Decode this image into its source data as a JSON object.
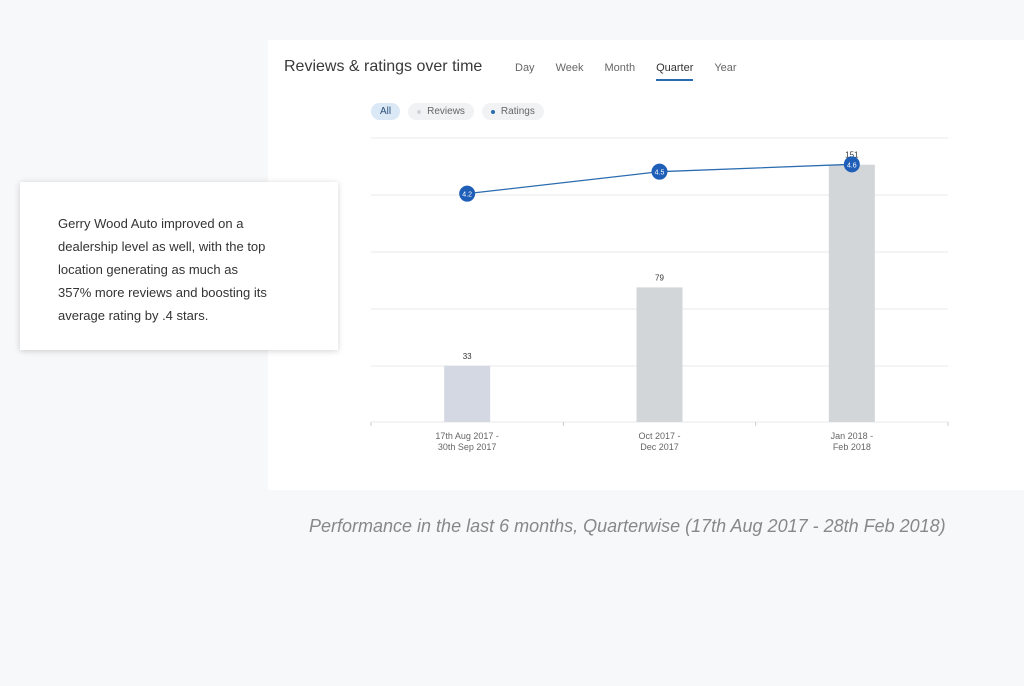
{
  "header": {
    "title": "Reviews & ratings over time",
    "period_tabs": [
      {
        "label": "Day",
        "active": false
      },
      {
        "label": "Week",
        "active": false
      },
      {
        "label": "Month",
        "active": false
      },
      {
        "label": "Quarter",
        "active": true
      },
      {
        "label": "Year",
        "active": false
      }
    ]
  },
  "filters": [
    {
      "label": "All",
      "active": true,
      "dot_color": ""
    },
    {
      "label": "Reviews",
      "active": false,
      "dot_color": "#d0d4d8"
    },
    {
      "label": "Ratings",
      "active": false,
      "dot_color": "#2b6cb0"
    }
  ],
  "colors": {
    "bar": "#d2d6d9",
    "bar_first": "#d4d8e2",
    "line": "#2b6cb0",
    "marker": "#1f5fb8",
    "grid": "#e8e8e8"
  },
  "chart_data": {
    "type": "bar",
    "categories": [
      [
        "17th Aug 2017 -",
        "30th Sep 2017"
      ],
      [
        "Oct 2017 -",
        "Dec 2017"
      ],
      [
        "Jan 2018 -",
        "Feb 2018"
      ]
    ],
    "series": [
      {
        "name": "Reviews",
        "type": "bar",
        "values": [
          33,
          79,
          151
        ]
      },
      {
        "name": "Ratings",
        "type": "line",
        "values": [
          4.2,
          4.5,
          4.6
        ]
      }
    ],
    "bar_value_labels": [
      "33",
      "79",
      "151"
    ],
    "rating_value_labels": [
      "4.2",
      "4.5",
      "4.6"
    ],
    "grid": true,
    "legend": "top-left"
  },
  "note": {
    "lines": [
      "Gerry Wood Auto improved on a",
      "dealership level as well, with the top",
      "location generating as much as",
      "357% more reviews and boosting its",
      "average rating by .4 stars."
    ]
  },
  "caption": "Performance in the last 6 months,  Quarterwise (17th Aug 2017 - 28th Feb 2018)"
}
